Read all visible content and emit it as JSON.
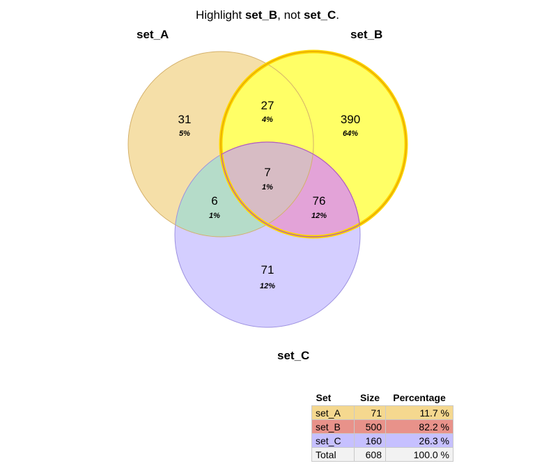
{
  "title": {
    "prefix": "Highlight ",
    "set1": "set_B",
    "middle": ", not ",
    "set2": "set_C",
    "suffix": "."
  },
  "sets": [
    {
      "name": "set_A",
      "color": "#f3d28e"
    },
    {
      "name": "set_B",
      "color": "#ffff00",
      "border": "#e8a800"
    },
    {
      "name": "set_C",
      "color": "#c8c0ff"
    }
  ],
  "regions": [
    {
      "key": "A_only",
      "count": "31",
      "pct": "5%"
    },
    {
      "key": "AB",
      "count": "27",
      "pct": "4%"
    },
    {
      "key": "B_only",
      "count": "390",
      "pct": "64%"
    },
    {
      "key": "ABC",
      "count": "7",
      "pct": "1%"
    },
    {
      "key": "AC",
      "count": "6",
      "pct": "1%"
    },
    {
      "key": "BC",
      "count": "76",
      "pct": "12%"
    },
    {
      "key": "C_only",
      "count": "71",
      "pct": "12%"
    }
  ],
  "table": {
    "headers": [
      "Set",
      "Size",
      "Percentage"
    ],
    "rows": [
      {
        "set": "set_A",
        "size": "71",
        "percentage": "11.7 %",
        "color": "#f5d88f"
      },
      {
        "set": "set_B",
        "size": "500",
        "percentage": "82.2 %",
        "color": "#e8928a"
      },
      {
        "set": "set_C",
        "size": "160",
        "percentage": "26.3 %",
        "color": "#c6c0ff"
      },
      {
        "set": "Total",
        "size": "608",
        "percentage": "100.0 %",
        "color": "#f2f2f2"
      }
    ]
  }
}
